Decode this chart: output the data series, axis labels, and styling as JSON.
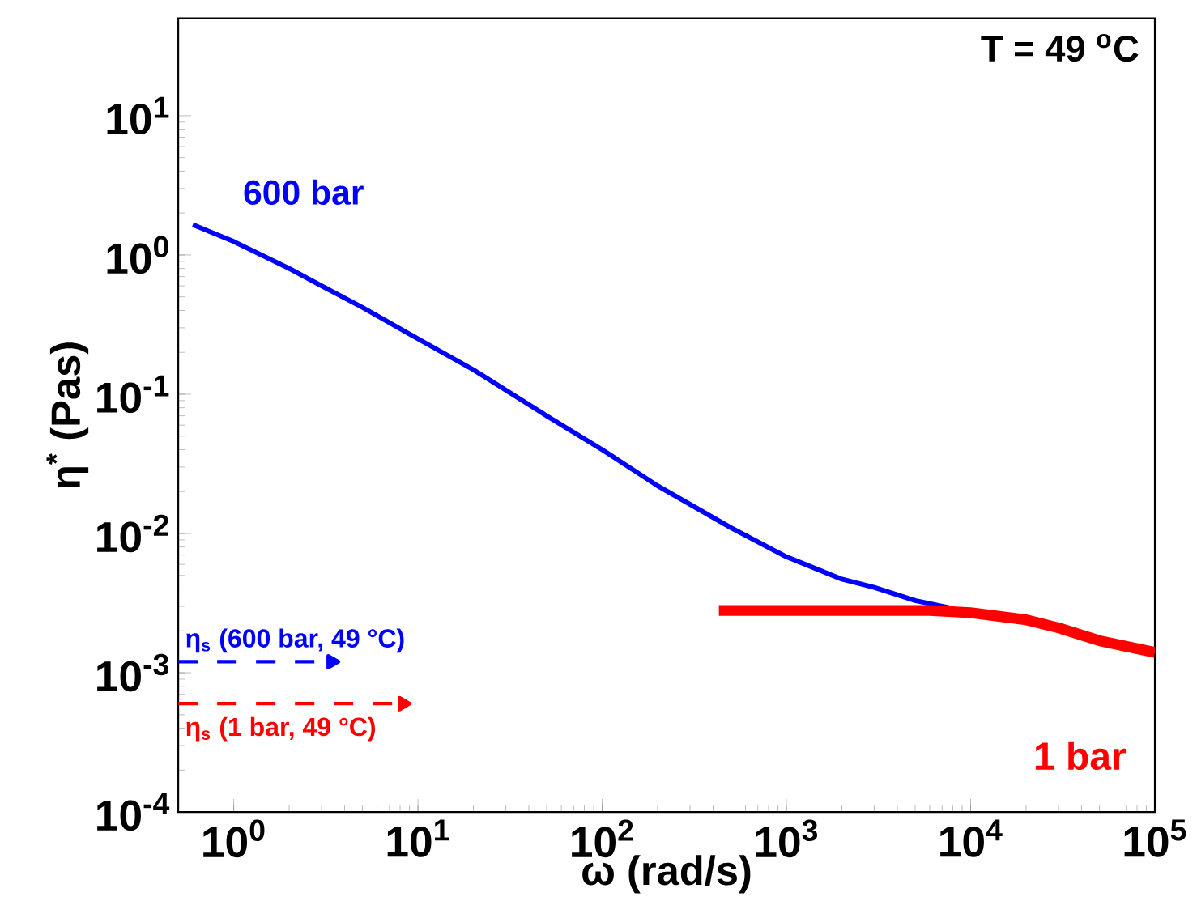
{
  "chart_data": {
    "type": "line",
    "xlabel": "ω (rad/s)",
    "ylabel": "η$^{*}$ (Pas)",
    "log": "xy",
    "xlim": [
      0.5,
      100000
    ],
    "ylim": [
      0.0001,
      50
    ],
    "xticks": [
      {
        "value": 1,
        "label": "10$^{0}$"
      },
      {
        "value": 10,
        "label": "10$^{1}$"
      },
      {
        "value": 100,
        "label": "10$^{2}$"
      },
      {
        "value": 1000,
        "label": "10$^{3}$"
      },
      {
        "value": 10000,
        "label": "10$^{4}$"
      },
      {
        "value": 100000,
        "label": "10$^{5}$"
      }
    ],
    "yticks": [
      {
        "value": 0.0001,
        "label": "10$^{-4}$"
      },
      {
        "value": 0.001,
        "label": "10$^{-3}$"
      },
      {
        "value": 0.01,
        "label": "10$^{-2}$"
      },
      {
        "value": 0.1,
        "label": "10$^{-1}$"
      },
      {
        "value": 1,
        "label": "10$^{0}$"
      },
      {
        "value": 10,
        "label": "10$^{1}$"
      }
    ],
    "grid": false,
    "marker": "none",
    "series": [
      {
        "color": "#0000ff",
        "line_style": "solid",
        "x": [
          0.6,
          1,
          2,
          3,
          5,
          10,
          20,
          50,
          100,
          200,
          500,
          1000,
          2000,
          3000,
          5000,
          8000
        ],
        "values": [
          1.65,
          1.25,
          0.8,
          0.6,
          0.42,
          0.25,
          0.15,
          0.07,
          0.04,
          0.022,
          0.011,
          0.0068,
          0.0047,
          0.0041,
          0.0033,
          0.0029
        ]
      },
      {
        "color": "#ff0000",
        "line_style": "solid",
        "x": [
          430,
          1000,
          3000,
          6000,
          10000,
          20000,
          30000,
          50000,
          100000
        ],
        "values": [
          0.0028,
          0.0028,
          0.0028,
          0.0028,
          0.0027,
          0.0024,
          0.0021,
          0.0017,
          0.0014
        ]
      },
      {
        "color": "#0000ff",
        "line_style": "dashed",
        "marker": "triangle",
        "x": [
          0.5,
          3.4
        ],
        "values": [
          0.0012,
          0.0012
        ]
      },
      {
        "color": "#ff0000",
        "line_style": "dashed",
        "marker": "triangle",
        "x": [
          0.5,
          8.3
        ],
        "values": [
          0.0006,
          0.0006
        ]
      }
    ],
    "annotations": [
      "T = 49 $^{o}$C",
      "600 bar",
      "1 bar",
      "η$_{s}$ (600 bar, 49 °C)",
      "η$_{s}$ (1 bar, 49 °C)"
    ]
  }
}
